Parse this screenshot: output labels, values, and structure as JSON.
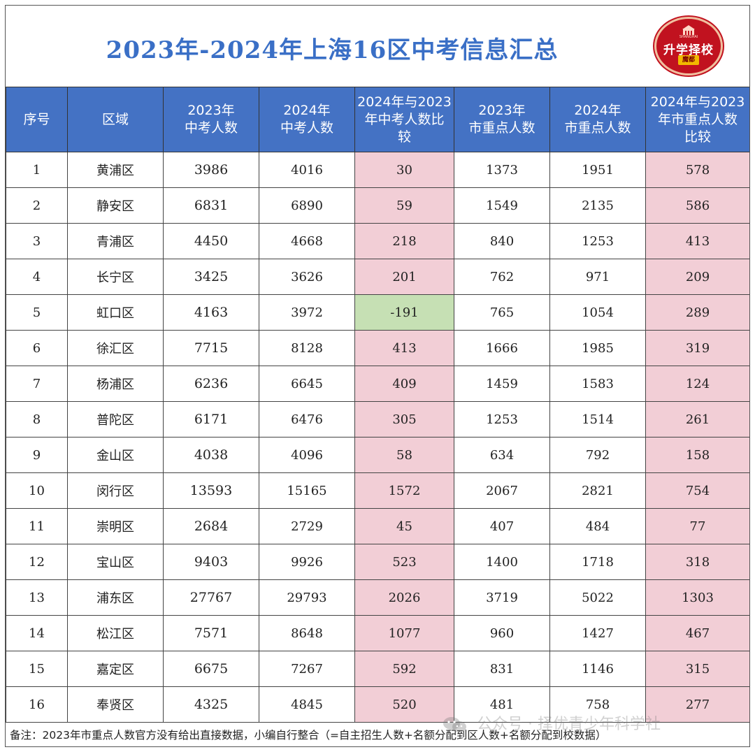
{
  "title": "2023年-2024年上海16区中考信息汇总",
  "logo": {
    "main": "升学择校",
    "sub": "魔都",
    "tiny": "SHANGHAI"
  },
  "headers": [
    "序号",
    "区域",
    "2023年\n中考人数",
    "2024年\n中考人数",
    "2024年与2023\n年中考人数比\n较",
    "2023年\n市重点人数",
    "2024年\n市重点人数",
    "2024年与2023\n年市重点人数\n比较"
  ],
  "rows": [
    [
      "1",
      "黄浦区",
      "3986",
      "4016",
      "30",
      "1373",
      "1951",
      "578"
    ],
    [
      "2",
      "静安区",
      "6831",
      "6890",
      "59",
      "1549",
      "2135",
      "586"
    ],
    [
      "3",
      "青浦区",
      "4450",
      "4668",
      "218",
      "840",
      "1253",
      "413"
    ],
    [
      "4",
      "长宁区",
      "3425",
      "3626",
      "201",
      "762",
      "971",
      "209"
    ],
    [
      "5",
      "虹口区",
      "4163",
      "3972",
      "-191",
      "765",
      "1054",
      "289"
    ],
    [
      "6",
      "徐汇区",
      "7715",
      "8128",
      "413",
      "1666",
      "1985",
      "319"
    ],
    [
      "7",
      "杨浦区",
      "6236",
      "6645",
      "409",
      "1459",
      "1583",
      "124"
    ],
    [
      "8",
      "普陀区",
      "6171",
      "6476",
      "305",
      "1253",
      "1514",
      "261"
    ],
    [
      "9",
      "金山区",
      "4038",
      "4096",
      "58",
      "634",
      "792",
      "158"
    ],
    [
      "10",
      "闵行区",
      "13593",
      "15165",
      "1572",
      "2067",
      "2821",
      "754"
    ],
    [
      "11",
      "崇明区",
      "2684",
      "2729",
      "45",
      "407",
      "484",
      "77"
    ],
    [
      "12",
      "宝山区",
      "9403",
      "9926",
      "523",
      "1400",
      "1718",
      "318"
    ],
    [
      "13",
      "浦东区",
      "27767",
      "29793",
      "2026",
      "3719",
      "5022",
      "1303"
    ],
    [
      "14",
      "松江区",
      "7571",
      "8648",
      "1077",
      "960",
      "1427",
      "467"
    ],
    [
      "15",
      "嘉定区",
      "6675",
      "7267",
      "592",
      "831",
      "1146",
      "315"
    ],
    [
      "16",
      "奉贤区",
      "4325",
      "4845",
      "520",
      "481",
      "758",
      "277"
    ]
  ],
  "note": "备注：2023年市重点人数官方没有给出直接数据，小编自行整合（=自主招生人数+名额分配到区人数+名额分配到校数据）",
  "watermark": "公众号 · 择优青少年科学社",
  "colors": {
    "header": "#4472c4",
    "increase": "#f2ced6",
    "decrease": "#c6e0b4",
    "title": "#3a6fc6"
  }
}
